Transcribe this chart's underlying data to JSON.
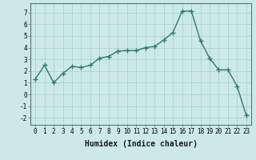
{
  "x": [
    0,
    1,
    2,
    3,
    4,
    5,
    6,
    7,
    8,
    9,
    10,
    11,
    12,
    13,
    14,
    15,
    16,
    17,
    18,
    19,
    20,
    21,
    22,
    23
  ],
  "y": [
    1.3,
    2.5,
    1.0,
    1.8,
    2.4,
    2.3,
    2.5,
    3.1,
    3.25,
    3.7,
    3.75,
    3.75,
    4.0,
    4.1,
    4.65,
    5.3,
    7.1,
    7.15,
    4.6,
    3.1,
    2.1,
    2.1,
    0.7,
    -1.8
  ],
  "xlabel": "Humidex (Indice chaleur)",
  "ylabel": "",
  "xlim": [
    -0.5,
    23.5
  ],
  "ylim": [
    -2.6,
    7.8
  ],
  "yticks": [
    -2,
    -1,
    0,
    1,
    2,
    3,
    4,
    5,
    6,
    7
  ],
  "xticks": [
    0,
    1,
    2,
    3,
    4,
    5,
    6,
    7,
    8,
    9,
    10,
    11,
    12,
    13,
    14,
    15,
    16,
    17,
    18,
    19,
    20,
    21,
    22,
    23
  ],
  "line_color": "#2d7d6e",
  "bg_color": "#cce8e8",
  "grid_color": "#aacccc",
  "marker": "+",
  "marker_size": 5,
  "line_width": 1.0,
  "tick_fontsize": 5.5,
  "xlabel_fontsize": 7.0
}
